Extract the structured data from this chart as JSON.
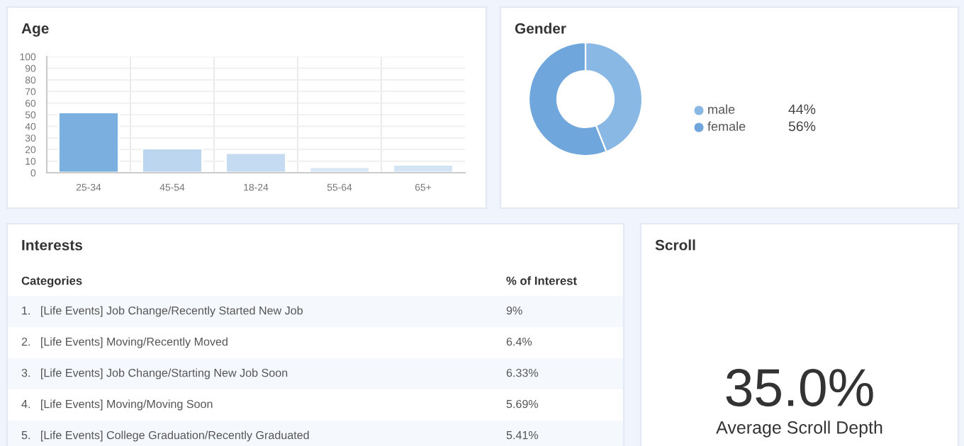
{
  "chart_data": [
    {
      "type": "bar",
      "title": "Age",
      "categories": [
        "25-34",
        "45-54",
        "18-24",
        "55-64",
        "65+"
      ],
      "values": [
        52,
        21,
        17,
        5,
        7
      ],
      "colors": [
        "#7aafdf",
        "#bcd6f0",
        "#c5dbf1",
        "#dbe9f7",
        "#d3e5f5"
      ],
      "ylim": [
        0,
        100
      ],
      "yticks": [
        0,
        10,
        20,
        30,
        40,
        50,
        60,
        70,
        80,
        90,
        100
      ],
      "grid": true
    },
    {
      "type": "donut",
      "title": "Gender",
      "categories": [
        "male",
        "female"
      ],
      "values": [
        44,
        56
      ],
      "colors": [
        "#8ab8e4",
        "#6fa6dc"
      ],
      "value_labels": [
        "44%",
        "56%"
      ],
      "legend": "right"
    },
    {
      "type": "other",
      "title": "Interests",
      "annotations": [
        "Categories",
        "% of Interest"
      ],
      "categories": [
        "1.   [Life Events] Job Change/Recently Started New Job",
        "2.   [Life Events] Moving/Recently Moved",
        "3.   [Life Events] Job Change/Starting New Job Soon",
        "4.   [Life Events] Moving/Moving Soon",
        "5.   [Life Events] College Graduation/Recently Graduated"
      ],
      "value_labels": [
        "9%",
        "6.4%",
        "6.33%",
        "5.69%",
        "5.41%"
      ]
    },
    {
      "type": "other",
      "title": "Scroll",
      "value_labels": [
        "35.0%"
      ],
      "annotations": [
        "Average Scroll Depth"
      ]
    }
  ]
}
